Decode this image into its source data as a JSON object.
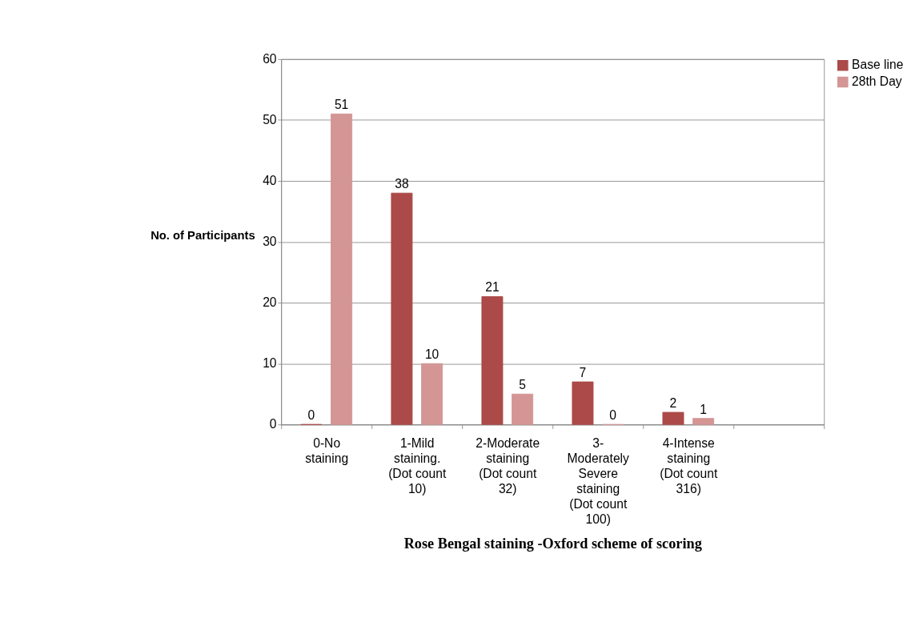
{
  "chart_data": {
    "type": "bar",
    "xlabel": "Rose Bengal staining -Oxford scheme of scoring",
    "ylabel": "No. of Participants",
    "categories": [
      "0-No staining",
      "1-Mild staining. (Dot count 10)",
      "2-Moderate staining (Dot count 32)",
      "3-Moderately Severe staining (Dot count 100)",
      "4-Intense staining (Dot count 316)",
      null
    ],
    "series": [
      {
        "name": "Base line",
        "color": "#ab4a48",
        "values": [
          0,
          38,
          21,
          7,
          2,
          null
        ]
      },
      {
        "name": "28th Day",
        "color": "#d49595",
        "values": [
          51,
          10,
          5,
          0,
          1,
          null
        ]
      }
    ],
    "ylim": [
      0,
      60
    ],
    "yticks": [
      0,
      10,
      20,
      30,
      40,
      50,
      60
    ],
    "grid": "y",
    "legend": "right",
    "data_labels": true
  }
}
